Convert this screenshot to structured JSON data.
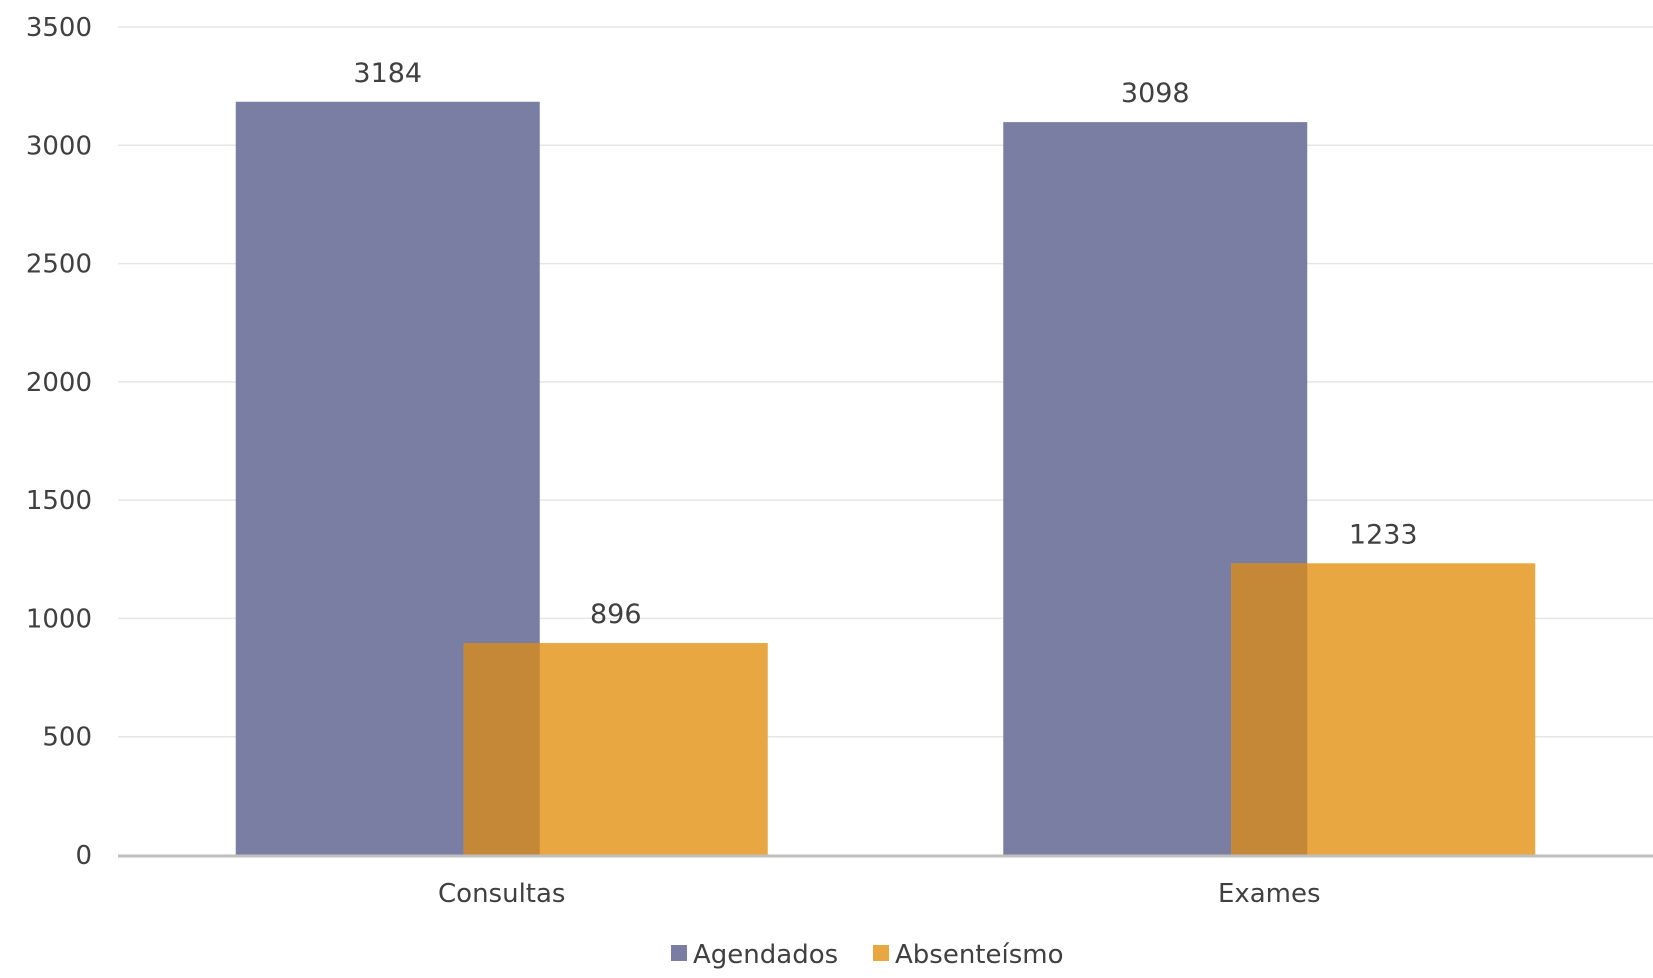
{
  "chart_data": {
    "type": "bar",
    "title": "",
    "xlabel": "",
    "ylabel": "",
    "categories": [
      "Consultas",
      "Exames"
    ],
    "series": [
      {
        "name": "Agendados",
        "values": [
          3184,
          3098
        ],
        "color": "#7b7ea3"
      },
      {
        "name": "Absenteísmo",
        "values": [
          896,
          1233
        ],
        "color": "#e8a740"
      }
    ],
    "overlap_color": "#c48836",
    "ylim": [
      0,
      3500
    ],
    "yticks": [
      0,
      500,
      1000,
      1500,
      2000,
      2500,
      3000,
      3500
    ],
    "grid": true,
    "legend_position": "bottom",
    "data_labels": true
  }
}
